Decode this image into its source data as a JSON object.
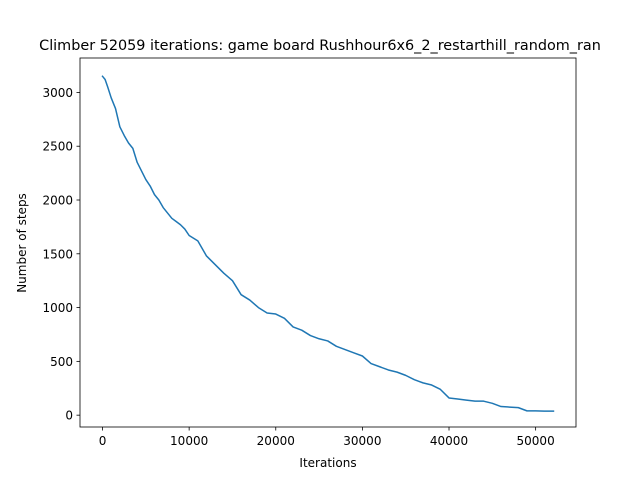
{
  "chart_data": {
    "type": "line",
    "title": "Climber 52059 iterations: game board Rushhour6x6_2_restarthill_random_ran",
    "xlabel": "Iterations",
    "ylabel": "Number of steps",
    "xlim": [
      -2600,
      54660
    ],
    "ylim": [
      -110,
      3320
    ],
    "xticks": [
      0,
      10000,
      20000,
      30000,
      40000,
      50000
    ],
    "xtick_labels": [
      "0",
      "10000",
      "20000",
      "30000",
      "40000",
      "50000"
    ],
    "yticks": [
      0,
      500,
      1000,
      1500,
      2000,
      2500,
      3000
    ],
    "ytick_labels": [
      "0",
      "500",
      "1000",
      "1500",
      "2000",
      "2500",
      "3000"
    ],
    "grid": false,
    "series": [
      {
        "color": "#1f77b4",
        "x": [
          0,
          300,
          600,
          1000,
          1500,
          2000,
          2500,
          3000,
          3500,
          4000,
          4500,
          5000,
          5500,
          6000,
          6500,
          7000,
          7500,
          8000,
          8500,
          9000,
          9500,
          10000,
          11000,
          12000,
          13000,
          14000,
          15000,
          16000,
          17000,
          18000,
          19000,
          20000,
          21000,
          22000,
          23000,
          24000,
          25000,
          26000,
          27000,
          28000,
          29000,
          30000,
          31000,
          32000,
          33000,
          34000,
          35000,
          36000,
          37000,
          38000,
          39000,
          40000,
          41000,
          42000,
          43000,
          44000,
          45000,
          46000,
          47000,
          48000,
          49000,
          50000,
          51000,
          52059
        ],
        "y": [
          3150,
          3120,
          3050,
          2950,
          2850,
          2680,
          2600,
          2530,
          2480,
          2350,
          2270,
          2190,
          2130,
          2050,
          2000,
          1930,
          1880,
          1830,
          1800,
          1770,
          1730,
          1670,
          1620,
          1480,
          1400,
          1320,
          1250,
          1120,
          1070,
          1000,
          950,
          940,
          900,
          820,
          790,
          740,
          710,
          690,
          640,
          610,
          580,
          550,
          480,
          450,
          420,
          400,
          370,
          330,
          300,
          280,
          240,
          160,
          150,
          140,
          130,
          130,
          110,
          80,
          75,
          70,
          40,
          40,
          38,
          38
        ]
      }
    ]
  }
}
